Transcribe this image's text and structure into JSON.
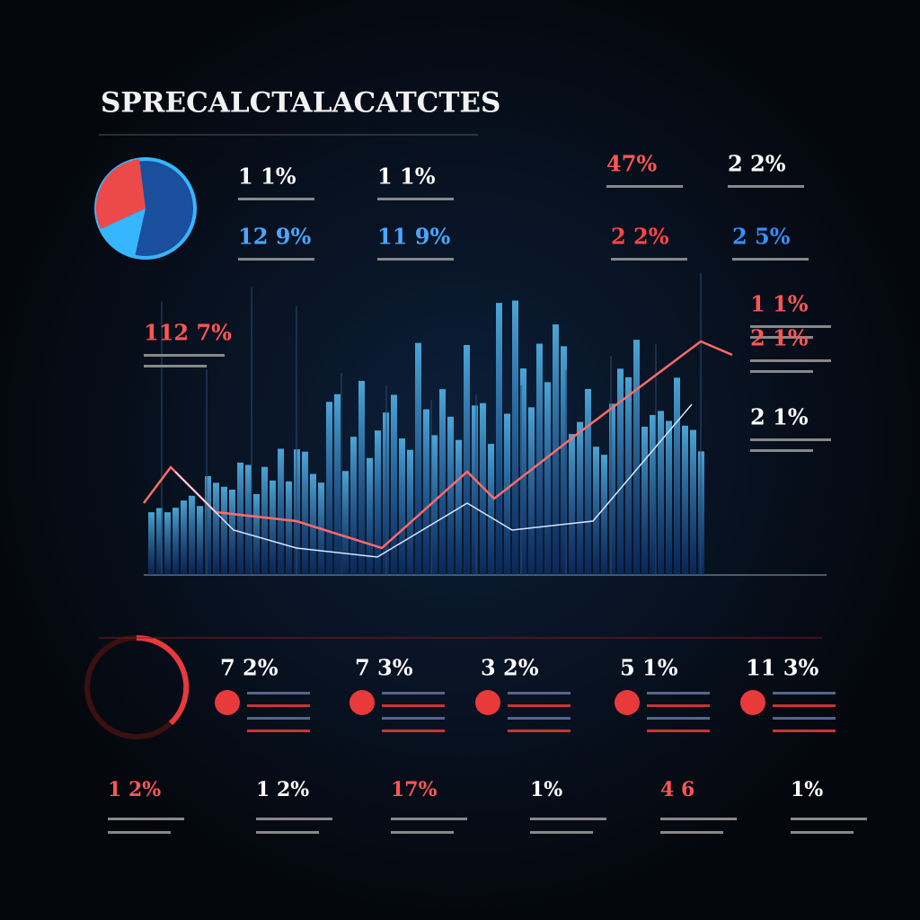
{
  "header": {
    "title": "SPRECALCTALACATCTES"
  },
  "top_stats": [
    "1 1%",
    "1 1%",
    "47%",
    "2 2%",
    "12 9%",
    "11 9%",
    "2 2%",
    "2 5%"
  ],
  "side_stats": [
    "112 7%",
    "1 1%",
    "2 1%",
    "2 1%"
  ],
  "bottom_stats": [
    "7 2%",
    "7 3%",
    "3 2%",
    "5 1%",
    "11 3%"
  ],
  "footer_stats": [
    "1 2%",
    "1 2%",
    "17%",
    "1%",
    "4 6",
    "1%"
  ]
}
